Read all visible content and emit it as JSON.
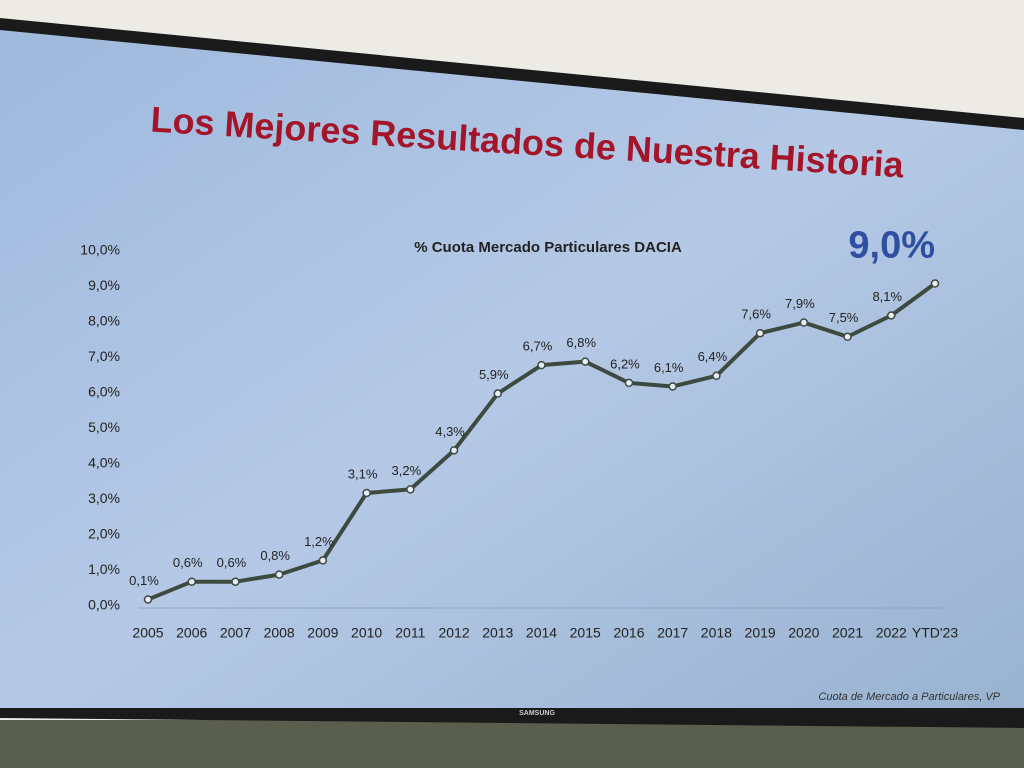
{
  "chart_data": {
    "type": "line",
    "title": "Los Mejores Resultados de Nuestra Historia",
    "subtitle": "% Cuota Mercado Particulares DACIA",
    "footnote": "Cuota de Mercado a Particulares, VP",
    "categories": [
      "2005",
      "2006",
      "2007",
      "2008",
      "2009",
      "2010",
      "2011",
      "2012",
      "2013",
      "2014",
      "2015",
      "2016",
      "2017",
      "2018",
      "2019",
      "2020",
      "2021",
      "2022",
      "YTD'23"
    ],
    "series": [
      {
        "name": "% Cuota Mercado Particulares DACIA",
        "color": "#3d4a40",
        "values": [
          0.1,
          0.6,
          0.6,
          0.8,
          1.2,
          3.1,
          3.2,
          4.3,
          5.9,
          6.7,
          6.8,
          6.2,
          6.1,
          6.4,
          7.6,
          7.9,
          7.5,
          8.1,
          9.0
        ],
        "value_labels": [
          "0,1%",
          "0,6%",
          "0,6%",
          "0,8%",
          "1,2%",
          "3,1%",
          "3,2%",
          "4,3%",
          "5,9%",
          "6,7%",
          "6,8%",
          "6,2%",
          "6,1%",
          "6,4%",
          "7,6%",
          "7,9%",
          "7,5%",
          "8,1%",
          "9,0%"
        ]
      }
    ],
    "ylim": [
      0,
      10
    ],
    "yticks": [
      {
        "value": 0,
        "label": "0,0%"
      },
      {
        "value": 1,
        "label": "1,0%"
      },
      {
        "value": 2,
        "label": "2,0%"
      },
      {
        "value": 3,
        "label": "3,0%"
      },
      {
        "value": 4,
        "label": "4,0%"
      },
      {
        "value": 5,
        "label": "5,0%"
      },
      {
        "value": 6,
        "label": "6,0%"
      },
      {
        "value": 7,
        "label": "7,0%"
      },
      {
        "value": 8,
        "label": "8,0%"
      },
      {
        "value": 9,
        "label": "9,0%"
      },
      {
        "value": 10,
        "label": "10,0%"
      }
    ],
    "grid": false
  },
  "bezel_logo": "SAMSUNG"
}
